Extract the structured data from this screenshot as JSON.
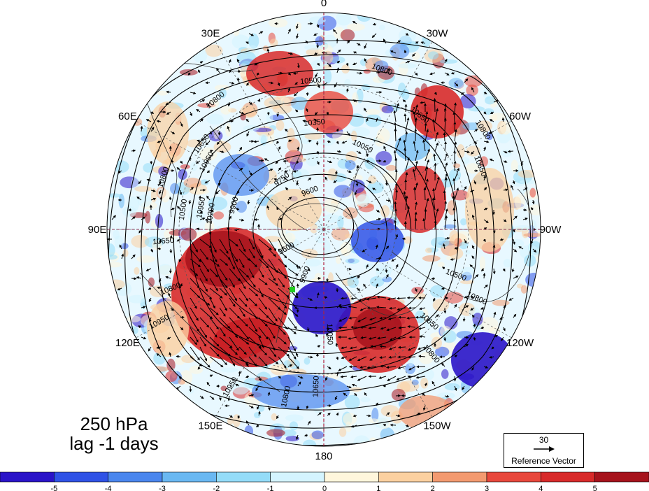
{
  "title_line1": "250 hPa",
  "title_line2": "lag -1 days",
  "reference_vector": {
    "value": "30",
    "label": "Reference Vector"
  },
  "longitude_labels": [
    {
      "text": "0",
      "angle": 0
    },
    {
      "text": "30W",
      "angle": 30
    },
    {
      "text": "60W",
      "angle": 60
    },
    {
      "text": "90W",
      "angle": 90
    },
    {
      "text": "120W",
      "angle": 120
    },
    {
      "text": "150W",
      "angle": 150
    },
    {
      "text": "180",
      "angle": 180
    },
    {
      "text": "150E",
      "angle": 210
    },
    {
      "text": "120E",
      "angle": 240
    },
    {
      "text": "90E",
      "angle": 270
    },
    {
      "text": "60E",
      "angle": 300
    },
    {
      "text": "30E",
      "angle": 330
    }
  ],
  "colorbar": {
    "ticks": [
      "-5",
      "-4",
      "-3",
      "-2",
      "-1",
      "0",
      "1",
      "2",
      "3",
      "4",
      "5"
    ],
    "colors": [
      "#2a14c8",
      "#2f52e6",
      "#4a86ee",
      "#6ab8f2",
      "#94dcf8",
      "#d4f4ff",
      "#fff6dc",
      "#fbd0a0",
      "#f39a70",
      "#e8483c",
      "#d82a2a",
      "#a6131c"
    ]
  },
  "contour_labels": [
    {
      "text": "10800",
      "angle": 20,
      "r": 240
    },
    {
      "text": "10650",
      "angle": 40,
      "r": 210
    },
    {
      "text": "10350",
      "angle": -5,
      "r": 150
    },
    {
      "text": "10050",
      "angle": 25,
      "r": 128
    },
    {
      "text": "10800",
      "angle": -40,
      "r": 238
    },
    {
      "text": "10650",
      "angle": -55,
      "r": 210
    },
    {
      "text": "10500",
      "angle": -5,
      "r": 210
    },
    {
      "text": "10800",
      "angle": -72,
      "r": 238
    },
    {
      "text": "10950",
      "angle": -60,
      "r": 190
    },
    {
      "text": "10950",
      "angle": -80,
      "r": 175
    },
    {
      "text": "10500",
      "angle": -82,
      "r": 200
    },
    {
      "text": "10200",
      "angle": -82,
      "r": 160
    },
    {
      "text": "9900",
      "angle": -75,
      "r": 130
    },
    {
      "text": "9750",
      "angle": -40,
      "r": 90
    },
    {
      "text": "9600",
      "angle": -20,
      "r": 55
    },
    {
      "text": "9600",
      "angle": -120,
      "r": 60
    },
    {
      "text": "9900",
      "angle": -160,
      "r": 70
    },
    {
      "text": "10050",
      "angle": 178,
      "r": 150
    },
    {
      "text": "10650",
      "angle": -178,
      "r": 225
    },
    {
      "text": "10800",
      "angle": -168,
      "r": 245
    },
    {
      "text": "10950",
      "angle": -150,
      "r": 262
    },
    {
      "text": "10650",
      "angle": 132,
      "r": 200
    },
    {
      "text": "10800",
      "angle": 140,
      "r": 235
    },
    {
      "text": "10800",
      "angle": 115,
      "r": 240
    },
    {
      "text": "10650",
      "angle": 68,
      "r": 238
    },
    {
      "text": "10800",
      "angle": 58,
      "r": 265
    },
    {
      "text": "10500",
      "angle": 110,
      "r": 200
    },
    {
      "text": "10950",
      "angle": -120,
      "r": 270
    },
    {
      "text": "10800",
      "angle": -112,
      "r": 235
    },
    {
      "text": "10650",
      "angle": -95,
      "r": 230
    }
  ],
  "colors": {
    "coast": "#333333",
    "contour": "#000000",
    "dateline": "#b02040",
    "marker": "#22cc22"
  }
}
